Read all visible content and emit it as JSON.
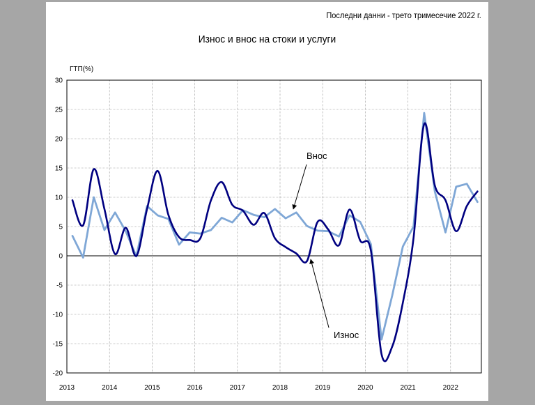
{
  "header": {
    "last_data": "Последни данни - трето тримесечие 2022 г."
  },
  "chart_data": {
    "type": "line",
    "title": "Износ и внос на стоки и услуги",
    "ylabel": "ГТП(%)",
    "xlabel": "",
    "ylim": [
      -20,
      30
    ],
    "yticks": [
      -20,
      -15,
      -10,
      -5,
      0,
      5,
      10,
      15,
      20,
      25,
      30
    ],
    "x_tick_labels": [
      "2013",
      "2014",
      "2015",
      "2016",
      "2017",
      "2018",
      "2019",
      "2020",
      "2021",
      "2022"
    ],
    "grid": true,
    "x": [
      "2013 Q1",
      "2013 Q2",
      "2013 Q3",
      "2013 Q4",
      "2014 Q1",
      "2014 Q2",
      "2014 Q3",
      "2014 Q4",
      "2015 Q1",
      "2015 Q2",
      "2015 Q3",
      "2015 Q4",
      "2016 Q1",
      "2016 Q2",
      "2016 Q3",
      "2016 Q4",
      "2017 Q1",
      "2017 Q2",
      "2017 Q3",
      "2017 Q4",
      "2018 Q1",
      "2018 Q2",
      "2018 Q3",
      "2018 Q4",
      "2019 Q1",
      "2019 Q2",
      "2019 Q3",
      "2019 Q4",
      "2020 Q1",
      "2020 Q2",
      "2020 Q3",
      "2020 Q4",
      "2021 Q1",
      "2021 Q2",
      "2021 Q3",
      "2021 Q4",
      "2022 Q1",
      "2022 Q2",
      "2022 Q3"
    ],
    "series": [
      {
        "name": "Износ",
        "color": "#000080",
        "values": [
          9.5,
          5.2,
          14.8,
          8.0,
          0.3,
          4.8,
          0.0,
          8.0,
          14.5,
          7.0,
          3.2,
          2.7,
          3.0,
          9.5,
          12.6,
          8.7,
          7.7,
          5.3,
          7.3,
          3.0,
          1.5,
          0.4,
          -0.9,
          5.8,
          4.5,
          1.8,
          7.9,
          2.6,
          0.9,
          -16.8,
          -15.5,
          -8.0,
          3.0,
          22.5,
          12.0,
          9.5,
          4.2,
          8.5,
          11.0
        ]
      },
      {
        "name": "Внос",
        "color": "#7fa7d6",
        "values": [
          3.4,
          -0.3,
          10.0,
          4.4,
          7.4,
          4.2,
          -0.1,
          8.5,
          6.9,
          6.3,
          1.9,
          4.0,
          3.8,
          4.4,
          6.5,
          5.7,
          7.8,
          7.0,
          6.6,
          8.0,
          6.4,
          7.4,
          5.1,
          4.3,
          4.2,
          3.3,
          6.9,
          5.8,
          2.0,
          -14.3,
          -6.8,
          1.6,
          5.0,
          24.4,
          11.0,
          4.0,
          11.8,
          12.3,
          9.2
        ]
      }
    ],
    "annotations": [
      {
        "text": "Внос",
        "series": "Внос"
      },
      {
        "text": "Износ",
        "series": "Износ"
      }
    ]
  }
}
